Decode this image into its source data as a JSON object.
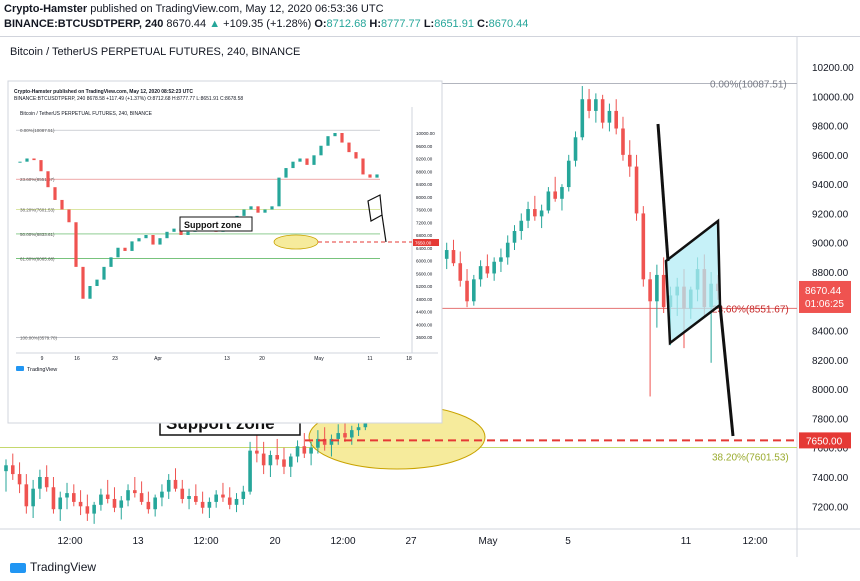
{
  "header": {
    "author": "Crypto-Hamster",
    "published": "published on TradingView.com, May 12, 2020 06:53:36 UTC",
    "symbol": "BINANCE:BTCUSDTPERP, 240",
    "last": "8670.44",
    "change": "+109.35 (+1.28%)",
    "o_label": "O:",
    "o_value": "8712.68",
    "h_label": "H:",
    "h_value": "8777.77",
    "l_label": "L:",
    "l_value": "8651.91",
    "c_label": "C:",
    "c_value": "8670.44"
  },
  "footer": {
    "brand": "TradingView"
  },
  "colors": {
    "up": "#26a69a",
    "down": "#ef5350",
    "zone_fill": "#f5e88b",
    "zone_stroke": "#c9a300",
    "fib_red": "#e57373",
    "fib_green": "#c5d86d",
    "flag_fill": "#b3ecf5",
    "support_line": "#e53935"
  },
  "chart_data": [
    {
      "type": "candlestick",
      "title": "Bitcoin / TetherUS PERPETUAL FUTURES, 240, BINANCE",
      "ylim": [
        7000,
        10300
      ],
      "y_ticks": [
        "10200.00",
        "10000.00",
        "9800.00",
        "9600.00",
        "9400.00",
        "9200.00",
        "9000.00",
        "8800.00",
        "8600.00",
        "8400.00",
        "8200.00",
        "8000.00",
        "7800.00",
        "7600.00",
        "7400.00",
        "7200.00"
      ],
      "x_ticks": [
        "12:00",
        "13",
        "12:00",
        "20",
        "12:00",
        "27",
        "May",
        "5",
        "11",
        "12:00"
      ],
      "price_label": "8670.44",
      "countdown_label": "01:06:25",
      "target_label": "7650.00",
      "target_price": 7650,
      "fib_levels": [
        {
          "label": "0.00%(10087.51)",
          "price": 10087.51
        },
        {
          "label": "23.60%(8551.67)",
          "price": 8551.67
        },
        {
          "label": "38.20%(7601.53)",
          "price": 7601.53
        }
      ],
      "annotation": "Support zone",
      "series": [
        {
          "values": [
            [
              7440,
              7520,
              7300,
              7480
            ],
            [
              7480,
              7560,
              7380,
              7420
            ],
            [
              7420,
              7500,
              7290,
              7350
            ],
            [
              7350,
              7420,
              7150,
              7200
            ],
            [
              7200,
              7380,
              7120,
              7320
            ],
            [
              7320,
              7450,
              7250,
              7400
            ],
            [
              7400,
              7480,
              7300,
              7330
            ],
            [
              7330,
              7400,
              7150,
              7180
            ],
            [
              7180,
              7300,
              7100,
              7260
            ],
            [
              7260,
              7360,
              7180,
              7290
            ],
            [
              7290,
              7350,
              7200,
              7230
            ],
            [
              7230,
              7310,
              7140,
              7200
            ],
            [
              7200,
              7280,
              7100,
              7150
            ],
            [
              7150,
              7230,
              7080,
              7210
            ],
            [
              7210,
              7320,
              7170,
              7280
            ],
            [
              7280,
              7380,
              7220,
              7250
            ],
            [
              7250,
              7330,
              7160,
              7190
            ],
            [
              7190,
              7270,
              7110,
              7240
            ],
            [
              7240,
              7350,
              7200,
              7310
            ],
            [
              7310,
              7400,
              7260,
              7290
            ],
            [
              7290,
              7370,
              7210,
              7230
            ],
            [
              7230,
              7300,
              7150,
              7180
            ],
            [
              7180,
              7280,
              7130,
              7260
            ],
            [
              7260,
              7350,
              7200,
              7300
            ],
            [
              7300,
              7420,
              7250,
              7380
            ],
            [
              7380,
              7460,
              7300,
              7320
            ],
            [
              7320,
              7380,
              7220,
              7250
            ],
            [
              7250,
              7320,
              7180,
              7270
            ],
            [
              7270,
              7350,
              7210,
              7230
            ],
            [
              7230,
              7300,
              7150,
              7190
            ],
            [
              7190,
              7260,
              7120,
              7230
            ],
            [
              7230,
              7310,
              7190,
              7280
            ],
            [
              7280,
              7360,
              7230,
              7260
            ],
            [
              7260,
              7330,
              7180,
              7210
            ],
            [
              7210,
              7290,
              7160,
              7250
            ],
            [
              7250,
              7340,
              7210,
              7300
            ],
            [
              7300,
              7640,
              7280,
              7580
            ],
            [
              7580,
              7820,
              7500,
              7560
            ],
            [
              7560,
              7640,
              7420,
              7480
            ],
            [
              7480,
              7580,
              7400,
              7550
            ],
            [
              7550,
              7660,
              7480,
              7520
            ],
            [
              7520,
              7600,
              7420,
              7470
            ],
            [
              7470,
              7560,
              7400,
              7540
            ],
            [
              7540,
              7650,
              7500,
              7610
            ],
            [
              7610,
              7700,
              7530,
              7560
            ],
            [
              7560,
              7640,
              7480,
              7600
            ],
            [
              7600,
              7720,
              7560,
              7660
            ],
            [
              7660,
              7740,
              7580,
              7620
            ],
            [
              7620,
              7690,
              7540,
              7660
            ],
            [
              7660,
              7760,
              7620,
              7700
            ],
            [
              7700,
              7780,
              7640,
              7670
            ],
            [
              7670,
              7750,
              7620,
              7720
            ],
            [
              7720,
              7800,
              7680,
              7740
            ],
            [
              7740,
              7920,
              7720,
              7880
            ],
            [
              7880,
              8200,
              7860,
              8150
            ],
            [
              8150,
              8650,
              8100,
              8600
            ],
            [
              8600,
              8980,
              8550,
              8900
            ],
            [
              8900,
              9380,
              8850,
              9300
            ],
            [
              9300,
              9400,
              9000,
              9050
            ],
            [
              9050,
              9150,
              8700,
              8780
            ],
            [
              8780,
              8900,
              8650,
              8850
            ],
            [
              8850,
              8980,
              8780,
              8920
            ],
            [
              8920,
              9050,
              8860,
              8880
            ],
            [
              8880,
              8960,
              8760,
              8800
            ],
            [
              8800,
              8920,
              8740,
              8890
            ],
            [
              8890,
              9000,
              8820,
              8950
            ],
            [
              8950,
              9020,
              8840,
              8860
            ],
            [
              8860,
              8940,
              8700,
              8740
            ],
            [
              8740,
              8820,
              8560,
              8600
            ],
            [
              8600,
              8780,
              8570,
              8750
            ],
            [
              8750,
              8880,
              8700,
              8840
            ],
            [
              8840,
              8920,
              8760,
              8790
            ],
            [
              8790,
              8900,
              8740,
              8870
            ],
            [
              8870,
              8960,
              8800,
              8900
            ],
            [
              8900,
              9050,
              8850,
              9000
            ],
            [
              9000,
              9120,
              8950,
              9080
            ],
            [
              9080,
              9200,
              9020,
              9150
            ],
            [
              9150,
              9280,
              9100,
              9230
            ],
            [
              9230,
              9320,
              9150,
              9180
            ],
            [
              9180,
              9260,
              9100,
              9220
            ],
            [
              9220,
              9380,
              9200,
              9350
            ],
            [
              9350,
              9450,
              9280,
              9300
            ],
            [
              9300,
              9400,
              9220,
              9380
            ],
            [
              9380,
              9600,
              9350,
              9560
            ],
            [
              9560,
              9760,
              9520,
              9720
            ],
            [
              9720,
              10070,
              9700,
              9980
            ],
            [
              9980,
              10050,
              9850,
              9900
            ],
            [
              9900,
              10020,
              9820,
              9980
            ],
            [
              9980,
              10010,
              9780,
              9820
            ],
            [
              9820,
              9950,
              9760,
              9900
            ],
            [
              9900,
              9980,
              9740,
              9780
            ],
            [
              9780,
              9860,
              9560,
              9600
            ],
            [
              9600,
              9700,
              9450,
              9520
            ],
            [
              9520,
              9600,
              9150,
              9200
            ],
            [
              9200,
              9250,
              8700,
              8750
            ],
            [
              8750,
              8800,
              7950,
              8600
            ],
            [
              8600,
              8850,
              8420,
              8780
            ],
            [
              8780,
              8900,
              8520,
              8560
            ],
            [
              8560,
              8700,
              8300,
              8640
            ],
            [
              8640,
              8760,
              8500,
              8700
            ],
            [
              8700,
              8820,
              8280,
              8550
            ],
            [
              8550,
              8700,
              8480,
              8680
            ],
            [
              8680,
              8900,
              8600,
              8820
            ],
            [
              8820,
              8920,
              8500,
              8560
            ],
            [
              8560,
              8800,
              8180,
              8720
            ],
            [
              8720,
              8780,
              8610,
              8670
            ]
          ]
        }
      ]
    },
    {
      "type": "candlestick",
      "title": "Bitcoin / TetherUS PERPETUAL FUTURES, 240, BINANCE",
      "header_line1": "Crypto-Hamster published on TradingView.com, May 12, 2020 08:52:23 UTC",
      "header_line2": "BINANCE:BTCUSDTPERP, 240 8678.58 +117.49 (+1.37%) O:8712.68 H:8777.77 L:8651.91 C:8678.58",
      "ylim": [
        3400,
        10300
      ],
      "y_ticks": [
        "10000.00",
        "9600.00",
        "9200.00",
        "8800.00",
        "8400.00",
        "8000.00",
        "7600.00",
        "7200.00",
        "6800.00",
        "6400.00",
        "6000.00",
        "5600.00",
        "5200.00",
        "4800.00",
        "4400.00",
        "4000.00",
        "3600.00"
      ],
      "x_ticks": [
        "9",
        "16",
        "23",
        "Apr",
        "13",
        "20",
        "May",
        "11",
        "18"
      ],
      "fib_levels": [
        {
          "label": "0.00%(10087.51)",
          "price": 10087.51
        },
        {
          "label": "23.60%(8551.67)",
          "price": 8551.67
        },
        {
          "label": "38.20%(7601.53)",
          "price": 7601.53
        },
        {
          "label": "50.00%(6833.61)",
          "price": 6833.61
        },
        {
          "label": "61.80%(6065.68)",
          "price": 6065.68
        },
        {
          "label": "100.00%(3579.70)",
          "price": 3579.7
        }
      ],
      "target_label": "7650.00",
      "annotation": "Support zone",
      "brand": "TradingView"
    }
  ]
}
